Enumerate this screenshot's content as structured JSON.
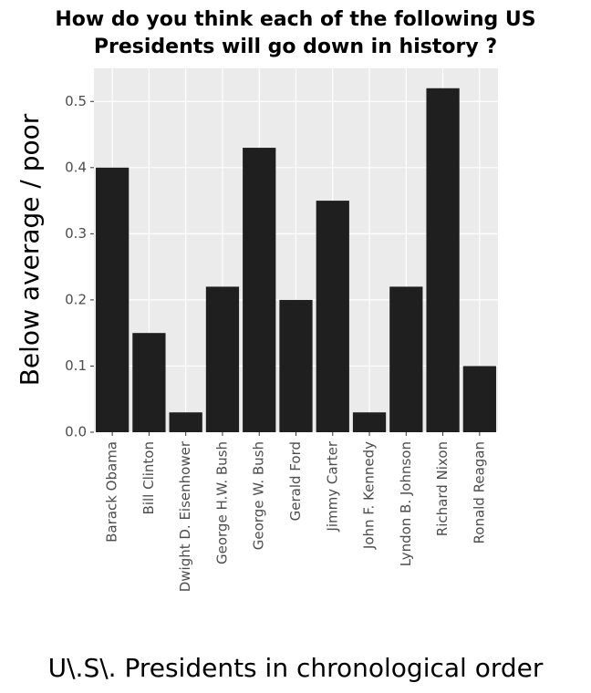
{
  "chart_data": {
    "type": "bar",
    "title": [
      "How do you think each of the following US",
      "Presidents will go down in history ?"
    ],
    "x_label": "U\\.S\\. Presidents in chronological order",
    "y_label": "Below average / poor",
    "categories": [
      "Barack Obama",
      "Bill Clinton",
      "Dwight D. Eisenhower",
      "George H.W. Bush",
      "George W. Bush",
      "Gerald Ford",
      "Jimmy Carter",
      "John F. Kennedy",
      "Lyndon B. Johnson",
      "Richard Nixon",
      "Ronald Reagan"
    ],
    "values": [
      0.4,
      0.15,
      0.03,
      0.22,
      0.43,
      0.2,
      0.35,
      0.03,
      0.22,
      0.52,
      0.1
    ],
    "color": "#1f1f1f",
    "ylim": [
      0,
      0.55
    ],
    "yticks": [
      {
        "value": 0,
        "label": "0.0"
      },
      0.1,
      0.2,
      0.3,
      0.4,
      0.5
    ],
    "grid": true
  }
}
